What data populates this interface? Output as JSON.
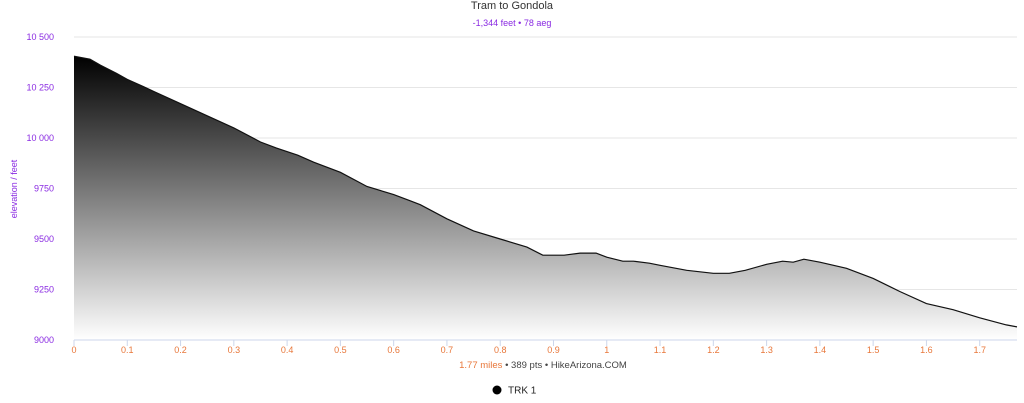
{
  "chart_data": {
    "type": "area",
    "title": "Tram to Gondola",
    "subtitle": "-1,344 feet • 78 aeg",
    "ylabel": "elevation / feet",
    "xlabel": "",
    "xlim": [
      0,
      1.77
    ],
    "ylim": [
      9000,
      10500
    ],
    "x_ticks": [
      0,
      0.1,
      0.2,
      0.3,
      0.4,
      0.5,
      0.6,
      0.7,
      0.8,
      0.9,
      1,
      1.1,
      1.2,
      1.3,
      1.4,
      1.5,
      1.6,
      1.7
    ],
    "x_tick_labels": [
      "0",
      "0.1",
      "0.2",
      "0.3",
      "0.4",
      "0.5",
      "0.6",
      "0.7",
      "0.8",
      "0.9",
      "1",
      "1.1",
      "1.2",
      "1.3",
      "1.4",
      "1.5",
      "1.6",
      "1.7"
    ],
    "y_ticks": [
      9000,
      9250,
      9500,
      9750,
      10000,
      10250,
      10500
    ],
    "y_tick_labels": [
      "9000",
      "9250",
      "9500",
      "9750",
      "10 000",
      "10 250",
      "10 500"
    ],
    "grid": true,
    "legend_position": "bottom-center",
    "series": [
      {
        "name": "TRK 1",
        "line_color": "#111111",
        "fill_top": "#000000",
        "fill_bottom": "#ffffff",
        "x": [
          0,
          0.03,
          0.05,
          0.08,
          0.1,
          0.13,
          0.15,
          0.2,
          0.25,
          0.3,
          0.35,
          0.38,
          0.42,
          0.45,
          0.5,
          0.55,
          0.6,
          0.63,
          0.65,
          0.7,
          0.75,
          0.8,
          0.85,
          0.88,
          0.92,
          0.95,
          0.98,
          1.0,
          1.03,
          1.05,
          1.08,
          1.1,
          1.15,
          1.2,
          1.23,
          1.26,
          1.3,
          1.33,
          1.35,
          1.37,
          1.4,
          1.45,
          1.5,
          1.55,
          1.6,
          1.65,
          1.7,
          1.75,
          1.77
        ],
        "y": [
          10405,
          10390,
          10360,
          10320,
          10290,
          10255,
          10230,
          10170,
          10110,
          10050,
          9980,
          9950,
          9915,
          9880,
          9830,
          9760,
          9720,
          9690,
          9670,
          9600,
          9540,
          9500,
          9460,
          9420,
          9420,
          9430,
          9430,
          9410,
          9390,
          9390,
          9380,
          9370,
          9345,
          9330,
          9330,
          9345,
          9375,
          9390,
          9385,
          9400,
          9385,
          9355,
          9305,
          9240,
          9180,
          9150,
          9110,
          9075,
          9065
        ]
      }
    ],
    "footer": {
      "distance": "1.77 miles",
      "sep1": " • ",
      "points": "389 pts",
      "sep2": " • ",
      "source": "HikeArizona.COM"
    },
    "legend": [
      {
        "name": "TRK 1",
        "marker_color": "#000000"
      }
    ]
  }
}
